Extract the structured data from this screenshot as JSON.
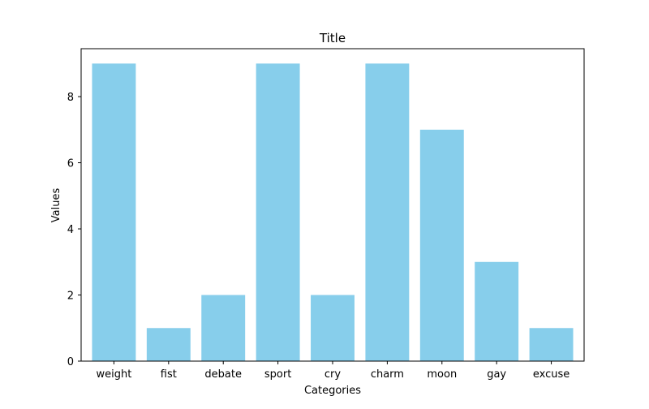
{
  "chart_data": {
    "type": "bar",
    "title": "Title",
    "xlabel": "Categories",
    "ylabel": "Values",
    "categories": [
      "weight",
      "fist",
      "debate",
      "sport",
      "cry",
      "charm",
      "moon",
      "gay",
      "excuse"
    ],
    "values": [
      9,
      1,
      2,
      9,
      2,
      9,
      7,
      3,
      1
    ],
    "ylim": [
      0,
      9.45
    ],
    "yticks": [
      0,
      2,
      4,
      6,
      8
    ],
    "bar_color": "#87CEEB",
    "grid": false,
    "legend": "none"
  }
}
